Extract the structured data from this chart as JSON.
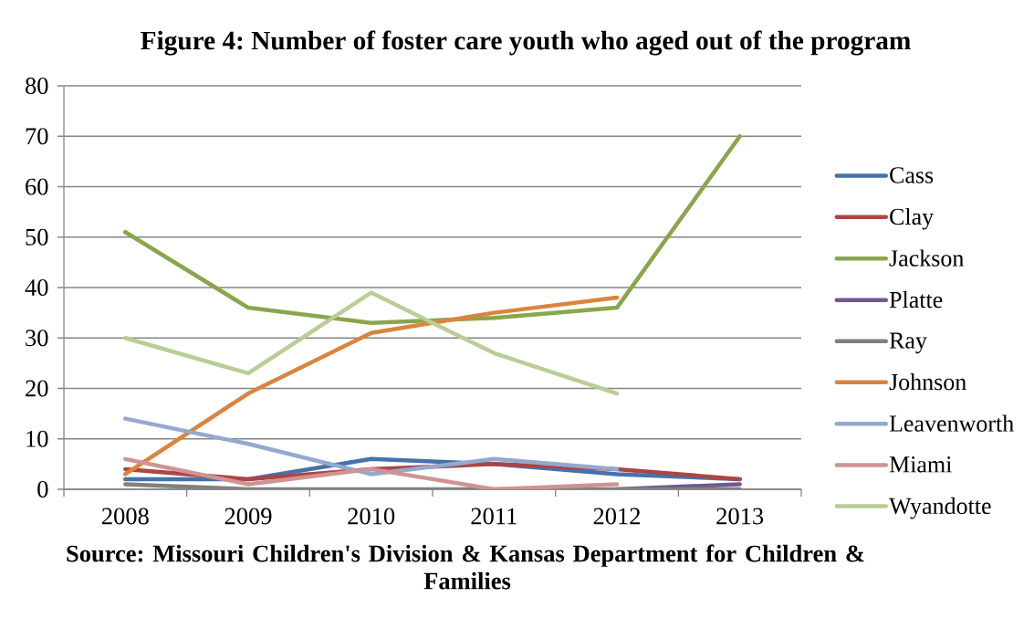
{
  "chart_data": {
    "type": "line",
    "title": "Figure 4: Number of foster care youth who aged out of the program",
    "categories": [
      "2008",
      "2009",
      "2010",
      "2011",
      "2012",
      "2013"
    ],
    "series": [
      {
        "name": "Cass",
        "color": "#4672aa",
        "values": [
          2,
          2,
          6,
          5,
          3,
          2
        ]
      },
      {
        "name": "Clay",
        "color": "#aa4644",
        "values": [
          4,
          2,
          4,
          5,
          4,
          2
        ]
      },
      {
        "name": "Jackson",
        "color": "#8aa64c",
        "values": [
          51,
          36,
          33,
          34,
          36,
          70
        ]
      },
      {
        "name": "Platte",
        "color": "#71588f",
        "values": [
          null,
          null,
          null,
          null,
          0,
          1
        ]
      },
      {
        "name": "Ray",
        "color": "#808080",
        "values": [
          1,
          0,
          0,
          0,
          0,
          0
        ]
      },
      {
        "name": "Johnson",
        "color": "#db843d",
        "values": [
          3,
          19,
          31,
          35,
          38,
          null
        ]
      },
      {
        "name": "Leavenworth",
        "color": "#93a9cf",
        "values": [
          14,
          9,
          3,
          6,
          4,
          null
        ]
      },
      {
        "name": "Miami",
        "color": "#d09393",
        "values": [
          6,
          1,
          4,
          0,
          1,
          null
        ]
      },
      {
        "name": "Wyandotte",
        "color": "#b9cd96",
        "values": [
          30,
          23,
          39,
          27,
          19,
          null
        ]
      }
    ],
    "ylim": [
      0,
      80
    ],
    "yticks": [
      0,
      10,
      20,
      30,
      40,
      50,
      60,
      70,
      80
    ],
    "grid": "y",
    "legend": "right",
    "marker": "none",
    "line_style": "solid",
    "annotations": [
      "Source: Missouri Children's Division & Kansas Department for Children & Families"
    ]
  }
}
